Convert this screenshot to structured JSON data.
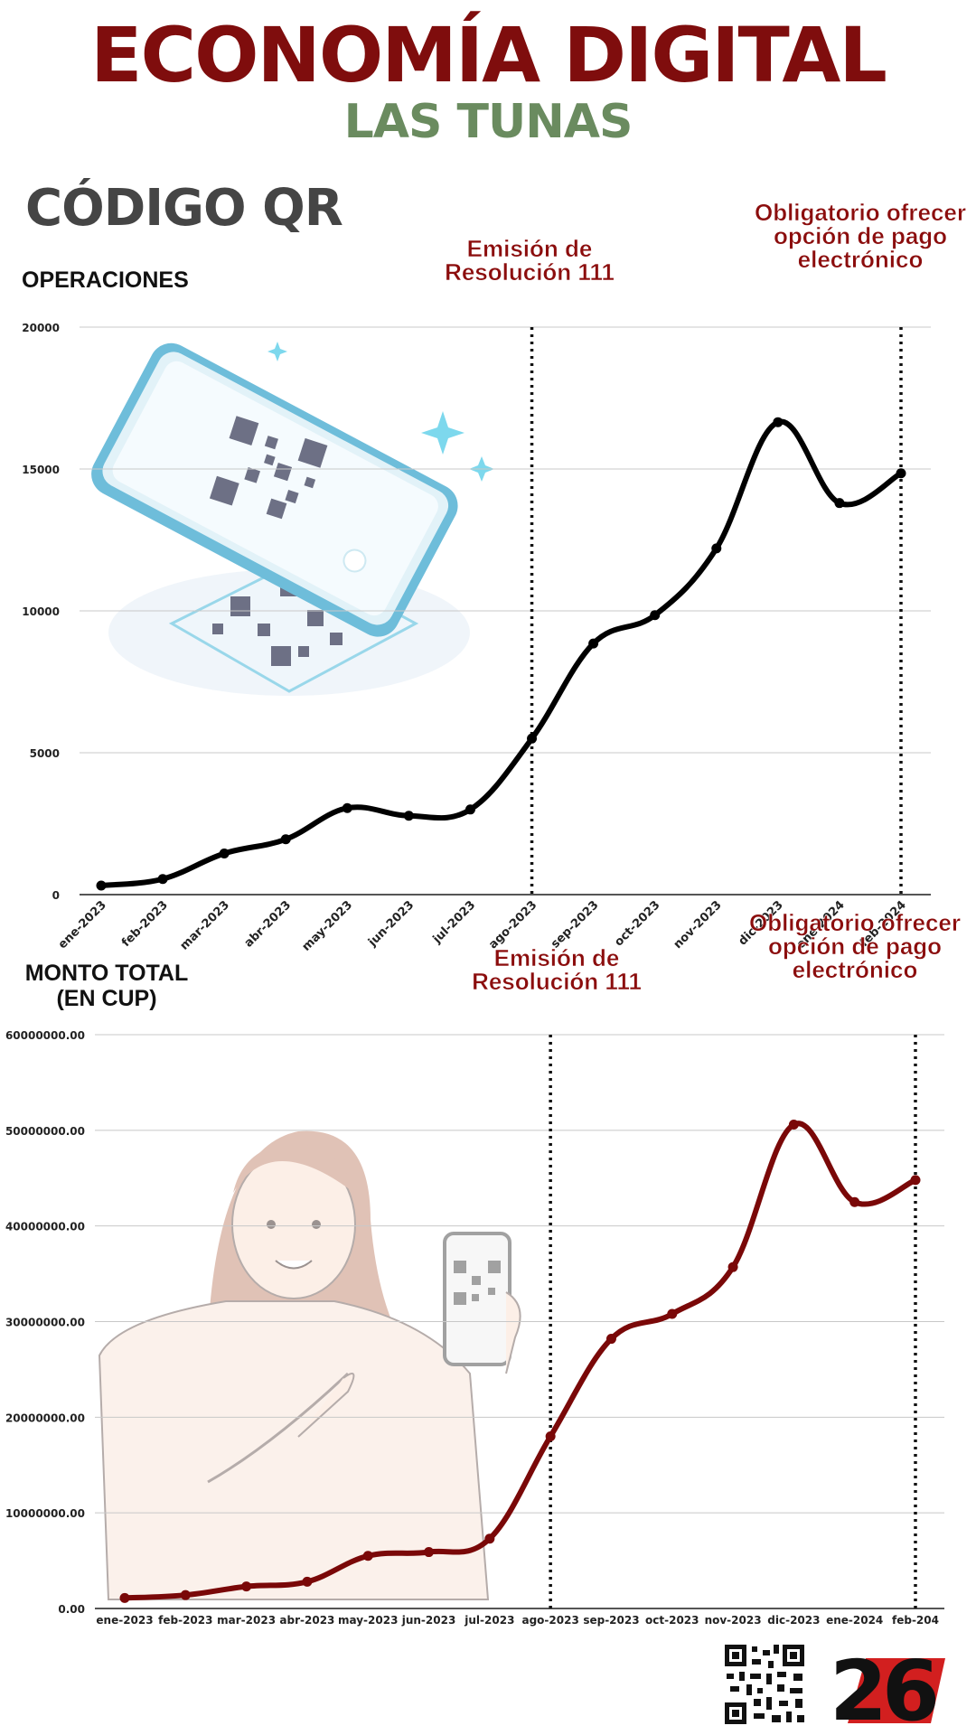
{
  "header": {
    "title": "ECONOMÍA DIGITAL",
    "subtitle": "LAS TUNAS",
    "section": "CÓDIGO QR"
  },
  "colors": {
    "title": "#7f0d0d",
    "subtitle": "#6a8b5f",
    "section": "#454545",
    "series1": "#000000",
    "series2": "#7a0808",
    "annotation": "#8b0d0d"
  },
  "chart_data": [
    {
      "type": "line",
      "title": "OPERACIONES",
      "categories": [
        "ene-2023",
        "feb-2023",
        "mar-2023",
        "abr-2023",
        "may-2023",
        "jun-2023",
        "jul-2023",
        "ago-2023",
        "sep-2023",
        "oct-2023",
        "nov-2023",
        "dic-2023",
        "ene-2024",
        "feb-2024"
      ],
      "series": [
        {
          "values": [
            320,
            550,
            1450,
            1950,
            3050,
            2780,
            3000,
            5500,
            8850,
            9850,
            12200,
            16650,
            13800,
            14850
          ]
        }
      ],
      "yticks": [
        "0",
        "5000",
        "10000",
        "15000",
        "20000"
      ],
      "ylim": [
        0,
        20000
      ],
      "grid": true,
      "annotations": [
        {
          "text_line1": "Emisión de",
          "text_line2": "Resolución 111",
          "at": "ago-2023"
        },
        {
          "text_line1": "Obligatorio ofrecer",
          "text_line2": "opción de pago",
          "text_line3": "electrónico",
          "at": "feb-2024"
        }
      ]
    },
    {
      "type": "line",
      "title_line1": "MONTO TOTAL",
      "title_line2": "(EN CUP)",
      "categories": [
        "ene-2023",
        "feb-2023",
        "mar-2023",
        "abr-2023",
        "may-2023",
        "jun-2023",
        "jul-2023",
        "ago-2023",
        "sep-2023",
        "oct-2023",
        "nov-2023",
        "dic-2023",
        "ene-2024",
        "feb-204"
      ],
      "series": [
        {
          "values": [
            1100000,
            1400000,
            2300000,
            2800000,
            5500000,
            5900000,
            7300000,
            18000000,
            28200000,
            30800000,
            35700000,
            50600000,
            42500000,
            44800000
          ]
        }
      ],
      "yticks": [
        "0.00",
        "10000000.00",
        "20000000.00",
        "30000000.00",
        "40000000.00",
        "50000000.00",
        "60000000.00"
      ],
      "ylim": [
        0,
        60000000
      ],
      "grid": true,
      "annotations": [
        {
          "text_line1": "Emisión de",
          "text_line2": "Resolución 111",
          "at": "ago-2023"
        },
        {
          "text_line1": "Obligatorio ofrecer",
          "text_line2": "opción de pago",
          "text_line3": "electrónico",
          "at": "feb-204"
        }
      ]
    }
  ],
  "footer": {
    "logo_text": "26"
  }
}
